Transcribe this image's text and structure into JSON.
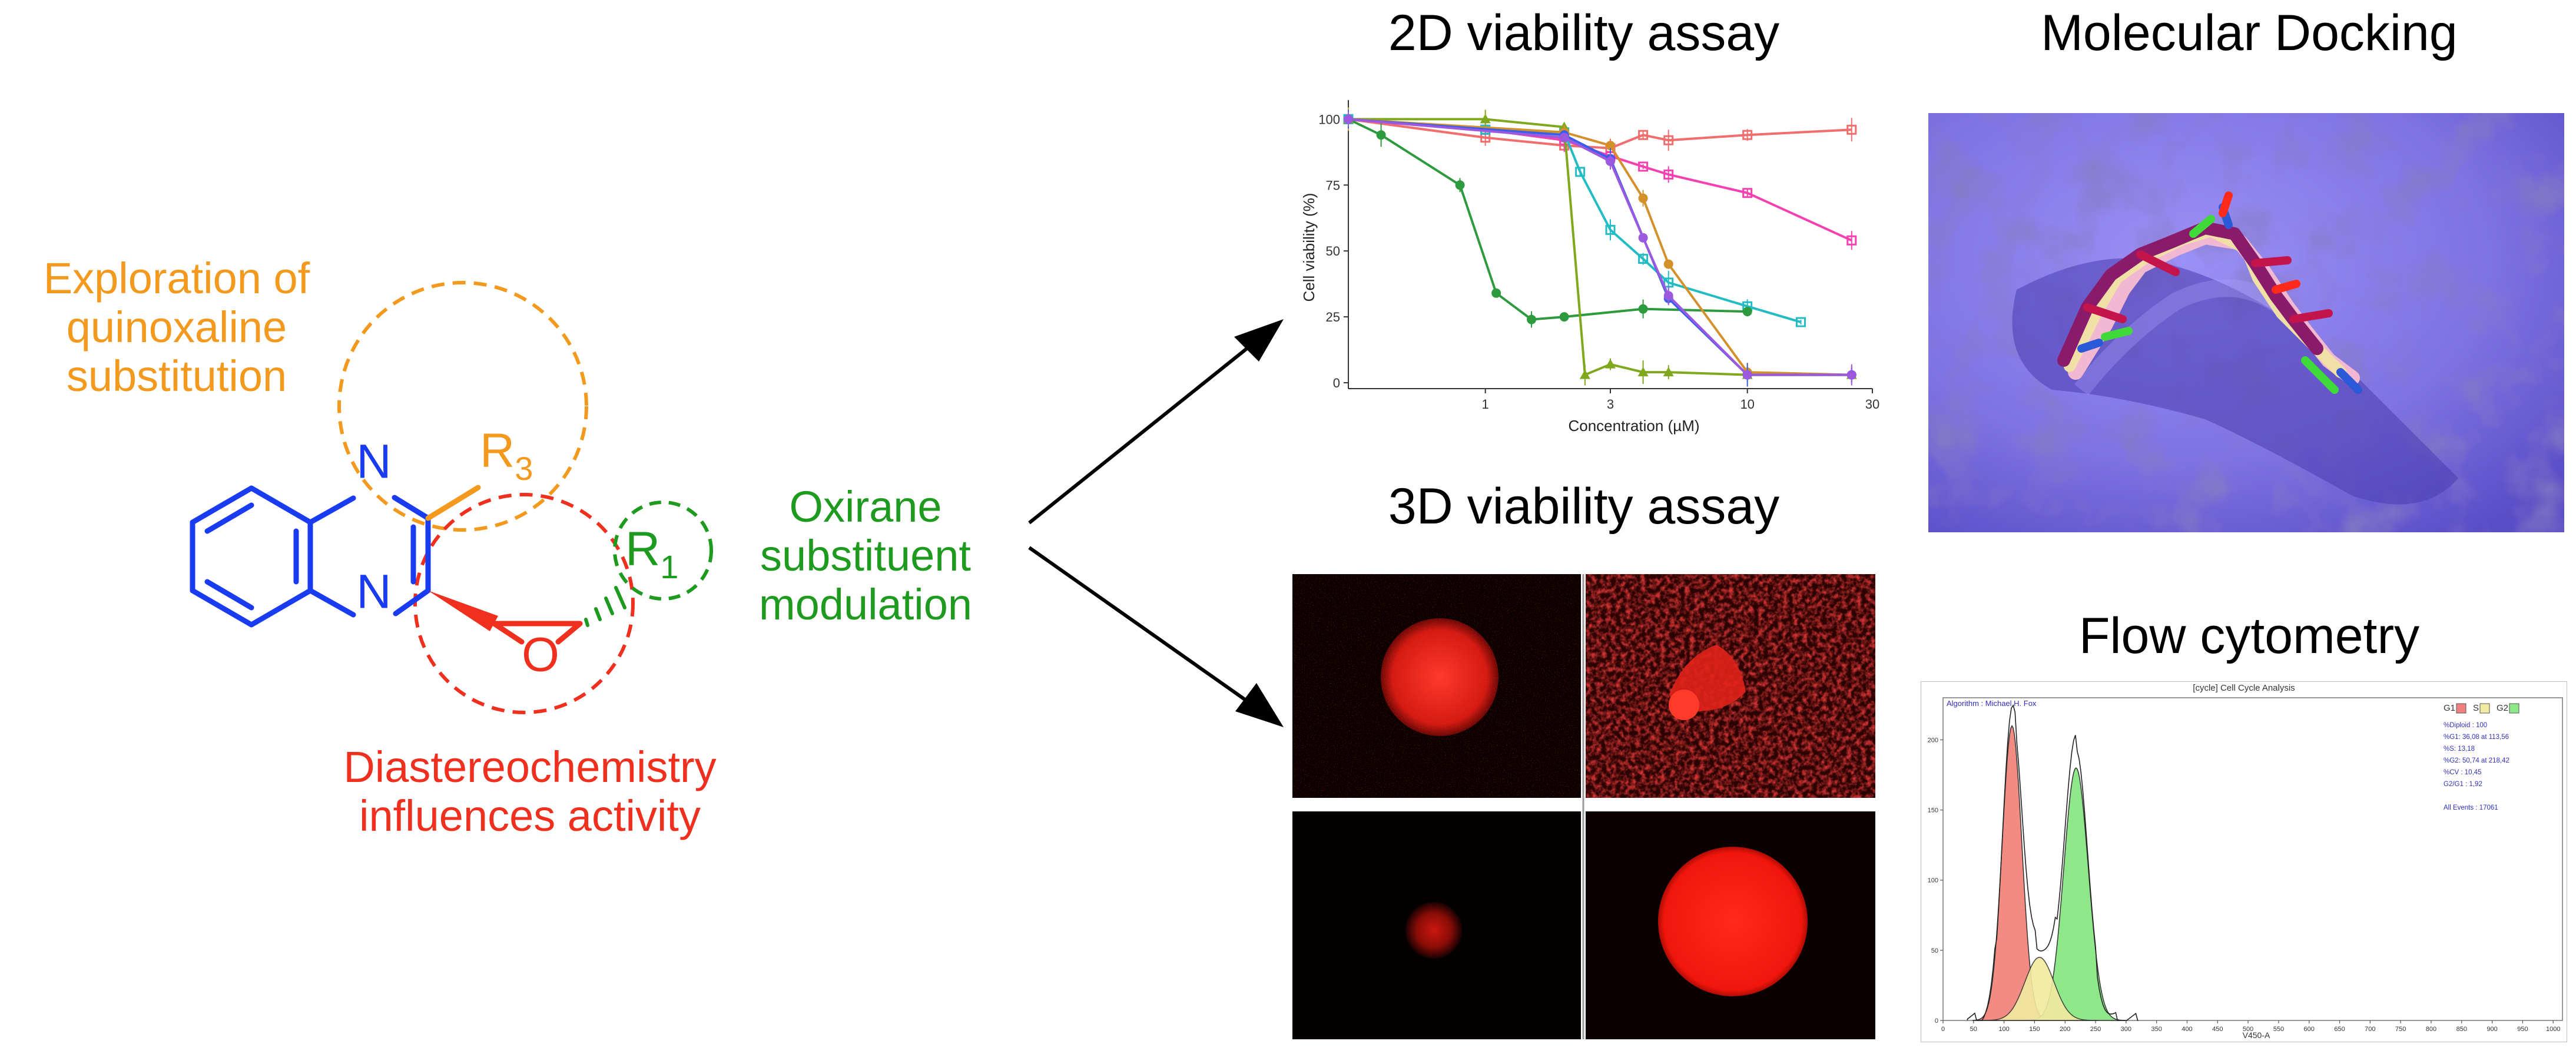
{
  "molecule": {
    "atom_n1": "N",
    "atom_n2": "N",
    "atom_o": "O",
    "r3_letter": "R",
    "r3_sub": "3",
    "r1_letter": "R",
    "r1_sub": "1",
    "colors": {
      "core": "#1a3cf0",
      "quinoxaline": "#f39a1e",
      "oxirane": "#f0301e",
      "substituent": "#1e9a1e"
    }
  },
  "annotations": {
    "quinoxaline": [
      "Exploration of",
      "quinoxaline",
      "substitution"
    ],
    "diastereo": [
      "Diastereochemistry",
      "influences activity"
    ],
    "oxirane": [
      "Oxirane",
      "substituent",
      "modulation"
    ]
  },
  "panels": {
    "assay2d_title": "2D viability assay",
    "assay3d_title": "3D viability assay",
    "docking_title": "Molecular Docking",
    "flow_title": "Flow cytometry"
  },
  "chart_data": {
    "type": "line",
    "xlabel": "Concentration (µM)",
    "ylabel": "Cell viability (%)",
    "xscale": "log",
    "xlim": [
      0.3,
      30
    ],
    "ylim": [
      0,
      105
    ],
    "xticks": [
      1,
      3,
      10,
      30
    ],
    "yticks": [
      0,
      25,
      50,
      75,
      100
    ],
    "series": [
      {
        "color": "#f26d6d",
        "marker": "square-open",
        "points": [
          [
            0.3,
            100
          ],
          [
            1,
            93
          ],
          [
            2,
            90
          ],
          [
            3,
            89
          ],
          [
            4,
            94
          ],
          [
            5,
            92
          ],
          [
            10,
            94
          ],
          [
            25,
            96
          ]
        ]
      },
      {
        "color": "#f540b0",
        "marker": "square-open",
        "points": [
          [
            0.3,
            100
          ],
          [
            1,
            96
          ],
          [
            2,
            92
          ],
          [
            3,
            86
          ],
          [
            4,
            82
          ],
          [
            5,
            79
          ],
          [
            10,
            72
          ],
          [
            25,
            54
          ]
        ]
      },
      {
        "color": "#23bcc4",
        "marker": "square-open",
        "points": [
          [
            0.3,
            100
          ],
          [
            1,
            96
          ],
          [
            2,
            95
          ],
          [
            2.3,
            80
          ],
          [
            3,
            58
          ],
          [
            4,
            47
          ],
          [
            5,
            38
          ],
          [
            10,
            29
          ],
          [
            16,
            23
          ]
        ]
      },
      {
        "color": "#2e9a3e",
        "marker": "circle",
        "points": [
          [
            0.3,
            100
          ],
          [
            0.4,
            94
          ],
          [
            0.8,
            75
          ],
          [
            1.1,
            34
          ],
          [
            1.5,
            24
          ],
          [
            2,
            25
          ],
          [
            4,
            28
          ],
          [
            10,
            27
          ]
        ]
      },
      {
        "color": "#7fa81e",
        "marker": "triangle",
        "points": [
          [
            0.3,
            100
          ],
          [
            1,
            100
          ],
          [
            2,
            97
          ],
          [
            2.4,
            3
          ],
          [
            3,
            7
          ],
          [
            4,
            4
          ],
          [
            5,
            4
          ],
          [
            10,
            3
          ],
          [
            25,
            3
          ]
        ]
      },
      {
        "color": "#d4902a",
        "marker": "circle",
        "points": [
          [
            0.3,
            100
          ],
          [
            2,
            95
          ],
          [
            3,
            90
          ],
          [
            4,
            70
          ],
          [
            5,
            45
          ],
          [
            10,
            4
          ],
          [
            25,
            3
          ]
        ]
      },
      {
        "color": "#3b5ee8",
        "marker": "circle",
        "points": [
          [
            0.3,
            100
          ],
          [
            2,
            94
          ],
          [
            3,
            85
          ],
          [
            5,
            32
          ],
          [
            10,
            3
          ],
          [
            25,
            3
          ]
        ]
      },
      {
        "color": "#9b59e0",
        "marker": "circle",
        "points": [
          [
            0.3,
            100
          ],
          [
            2,
            93
          ],
          [
            3,
            84
          ],
          [
            4,
            55
          ],
          [
            5,
            33
          ],
          [
            10,
            3
          ],
          [
            25,
            3
          ]
        ]
      }
    ]
  },
  "flow": {
    "title": "[cycle] Cell Cycle Analysis",
    "algorithm": "Algorithm : Michael H. Fox",
    "legend": [
      "G1",
      "S",
      "G2"
    ],
    "stats": [
      "%Diploid : 100",
      "%G1: 36,08 at 113,56",
      "%S: 13,18",
      "%G2: 50,74 at 218,42",
      "%CV : 10,45",
      "G2/G1 : 1,92",
      "",
      "All Events : 17061"
    ],
    "xlabel": "V450-A",
    "xticks": [
      "0",
      "50",
      "100",
      "150",
      "200",
      "250",
      "300",
      "350",
      "400",
      "450",
      "500",
      "550",
      "600",
      "650",
      "700",
      "750",
      "800",
      "850",
      "900",
      "950",
      "1000"
    ],
    "yticks": [
      "0",
      "50",
      "100",
      "150",
      "200"
    ]
  }
}
